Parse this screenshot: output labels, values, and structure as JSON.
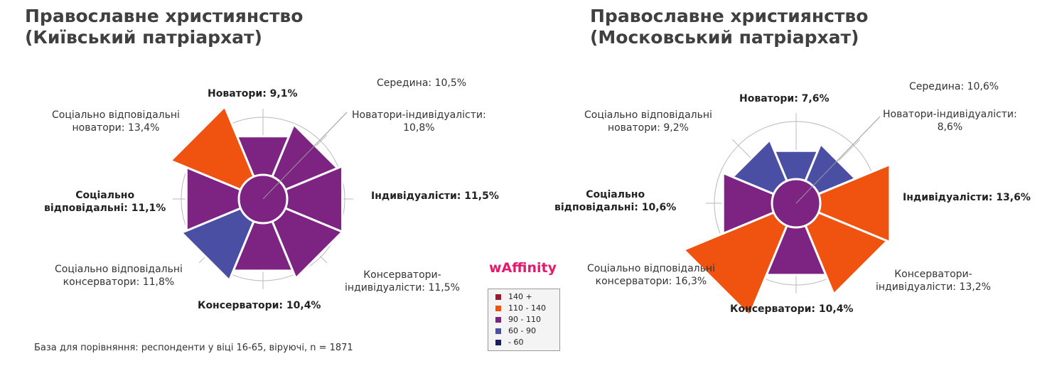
{
  "footnote": "База для порівняння: респонденти у віці 16-65, віруючі, n = 1871",
  "brand": "wAffinity",
  "legend": [
    {
      "label": "140 +",
      "color": "#9b1b30"
    },
    {
      "label": "110 - 140",
      "color": "#f0520f"
    },
    {
      "label": "90 - 110",
      "color": "#7d2482"
    },
    {
      "label": "60 - 90",
      "color": "#4a4fa3"
    },
    {
      "label": "- 60",
      "color": "#1c1f5e"
    }
  ],
  "chart_data": [
    {
      "type": "radar-wedge",
      "title_line1": "Православне християнство",
      "title_line2": "(Київський патріархат)",
      "labels": {
        "center": "Середина: 10,5%",
        "innovators": "Новатори: 9,1%",
        "innov_indiv_1": "Новатори-індивідуалісти:",
        "innov_indiv_2": "10,8%",
        "individualists": "Індивідуалісти:  11,5%",
        "cons_indiv_1": "Консерватори-",
        "cons_indiv_2": "індивідуалісти:  11,5%",
        "conservatives": "Консерватори: 10,4%",
        "soc_cons_1": "Соціально відповідальні",
        "soc_cons_2": "консерватори: 11,8%",
        "soc_resp_1": "Соціально",
        "soc_resp_2": "відповідальні: 11,1%",
        "soc_innov_1": "Соціально відповідальні",
        "soc_innov_2": "новатори: 13,4%"
      },
      "segments": [
        {
          "name": "Новатори",
          "value": 9.1,
          "color": "#7d2482"
        },
        {
          "name": "Новатори-індивідуалісти",
          "value": 10.8,
          "color": "#7d2482"
        },
        {
          "name": "Індивідуалісти",
          "value": 11.5,
          "color": "#7d2482"
        },
        {
          "name": "Консерватори-індивідуалісти",
          "value": 11.5,
          "color": "#7d2482"
        },
        {
          "name": "Консерватори",
          "value": 10.4,
          "color": "#7d2482"
        },
        {
          "name": "Соціально відповідальні консерватори",
          "value": 11.8,
          "color": "#4a4fa3"
        },
        {
          "name": "Соціально відповідальні",
          "value": 11.1,
          "color": "#7d2482"
        },
        {
          "name": "Соціально відповідальні новатори",
          "value": 13.4,
          "color": "#f0520f"
        }
      ],
      "center": {
        "name": "Середина",
        "value": 10.5,
        "color": "#7d2482"
      }
    },
    {
      "type": "radar-wedge",
      "title_line1": "Православне християнство",
      "title_line2": "(Московський патріархат)",
      "labels": {
        "center": "Середина: 10,6%",
        "innovators": "Новатори: 7,6%",
        "innov_indiv_1": "Новатори-індивідуалісти:",
        "innov_indiv_2": "8,6%",
        "individualists": "Індивідуалісти:  13,6%",
        "cons_indiv_1": "Консерватори-",
        "cons_indiv_2": "індивідуалісти:  13,2%",
        "conservatives": "Консерватори: 10,4%",
        "soc_cons_1": "Соціально відповідальні",
        "soc_cons_2": "консерватори: 16,3%",
        "soc_resp_1": "Соціально",
        "soc_resp_2": "відповідальні: 10,6%",
        "soc_innov_1": "Соціально відповідальні",
        "soc_innov_2": "новатори: 9,2%"
      },
      "segments": [
        {
          "name": "Новатори",
          "value": 7.6,
          "color": "#4a4fa3"
        },
        {
          "name": "Новатори-індивідуалісти",
          "value": 8.6,
          "color": "#4a4fa3"
        },
        {
          "name": "Індивідуалісти",
          "value": 13.6,
          "color": "#f0520f"
        },
        {
          "name": "Консерватори-індивідуалісти",
          "value": 13.2,
          "color": "#f0520f"
        },
        {
          "name": "Консерватори",
          "value": 10.4,
          "color": "#7d2482"
        },
        {
          "name": "Соціально відповідальні консерватори",
          "value": 16.3,
          "color": "#f0520f"
        },
        {
          "name": "Соціально відповідальні",
          "value": 10.6,
          "color": "#7d2482"
        },
        {
          "name": "Соціально відповідальні новатори",
          "value": 9.2,
          "color": "#4a4fa3"
        }
      ],
      "center": {
        "name": "Середина",
        "value": 10.6,
        "color": "#7d2482"
      }
    }
  ]
}
